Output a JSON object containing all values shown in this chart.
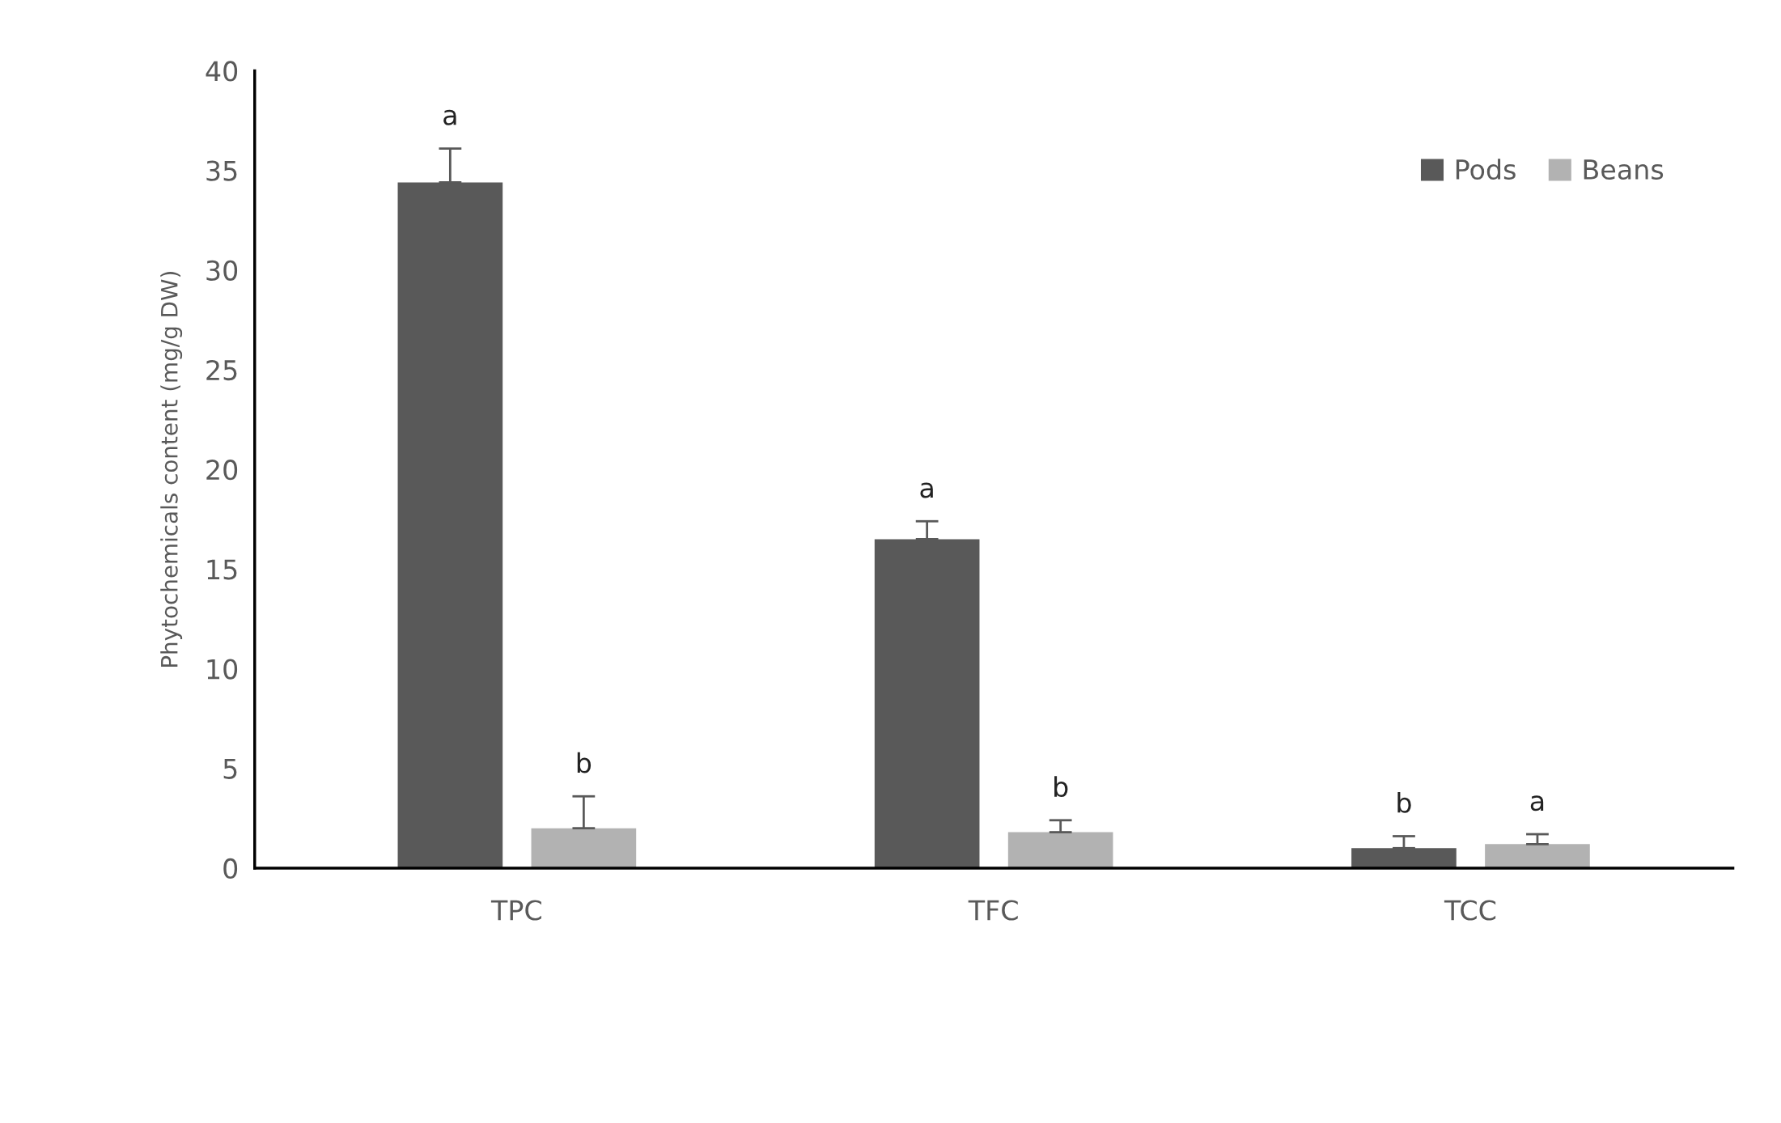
{
  "chart_data": {
    "type": "bar",
    "ylabel": "Phytochemicals content (mg/g DW)",
    "categories": [
      "TPC",
      "TFC",
      "TCC"
    ],
    "series": [
      {
        "name": "Pods",
        "color": "#595959",
        "values": [
          34.4,
          16.5,
          1.0
        ],
        "errors": [
          1.7,
          0.9,
          0.6
        ]
      },
      {
        "name": "Beans",
        "color": "#b2b2b2",
        "values": [
          2.0,
          1.8,
          1.2
        ],
        "errors": [
          1.6,
          0.6,
          0.5
        ]
      }
    ],
    "ylim": [
      0,
      40
    ],
    "yticks": [
      0,
      5,
      10,
      15,
      20,
      25,
      30,
      35,
      40
    ],
    "grid": false,
    "legend": "top right",
    "annotations": [
      "a",
      "b",
      "a",
      "b",
      "b",
      "a"
    ]
  }
}
